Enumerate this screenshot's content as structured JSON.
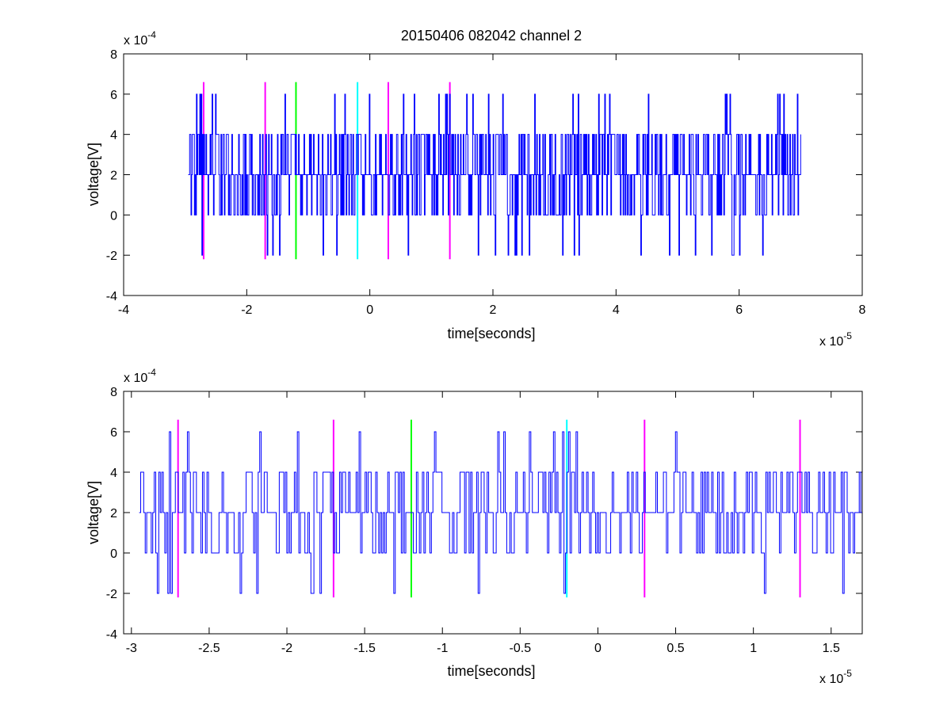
{
  "chart_data": [
    {
      "type": "line",
      "title": "20150406 082042 channel 2",
      "xlabel": "time[seconds]",
      "ylabel": "voltage[V]",
      "x_exponent": "x 10",
      "x_exponent_power": "-5",
      "y_exponent": "x 10",
      "y_exponent_power": "-4",
      "xlim": [
        -4,
        8
      ],
      "ylim": [
        -4,
        8
      ],
      "xticks": [
        "-4",
        "-2",
        "0",
        "2",
        "4",
        "6",
        "8"
      ],
      "yticks": [
        "-4",
        "-2",
        "0",
        "2",
        "4",
        "6",
        "8"
      ],
      "grid": false,
      "series": [
        {
          "color": "#0000ff",
          "x_range": [
            -2.95,
            7.0
          ],
          "levels": [
            -2,
            0,
            2,
            4,
            6
          ],
          "baseline": 2,
          "samples": 900
        }
      ],
      "markers": [
        {
          "x": -2.7,
          "color": "#ff00ff",
          "ymin": -2.2,
          "ymax": 6.6
        },
        {
          "x": -1.7,
          "color": "#ff00ff",
          "ymin": -2.2,
          "ymax": 6.6
        },
        {
          "x": -1.2,
          "color": "#00ff00",
          "ymin": -2.2,
          "ymax": 6.6
        },
        {
          "x": -0.2,
          "color": "#00ffff",
          "ymin": -2.2,
          "ymax": 6.6
        },
        {
          "x": 0.3,
          "color": "#ff00ff",
          "ymin": -2.2,
          "ymax": 6.6
        },
        {
          "x": 1.3,
          "color": "#ff00ff",
          "ymin": -2.2,
          "ymax": 6.6
        }
      ]
    },
    {
      "type": "line",
      "title": "",
      "xlabel": "time[seconds]",
      "ylabel": "voltage[V]",
      "x_exponent": "x 10",
      "x_exponent_power": "-5",
      "y_exponent": "x 10",
      "y_exponent_power": "-4",
      "xlim": [
        -3.05,
        1.7
      ],
      "ylim": [
        -4,
        8
      ],
      "xticks": [
        "-3",
        "-2.5",
        "-2",
        "-1.5",
        "-1",
        "-0.5",
        "0",
        "0.5",
        "1",
        "1.5"
      ],
      "yticks": [
        "-4",
        "-2",
        "0",
        "2",
        "4",
        "6",
        "8"
      ],
      "grid": false,
      "series": [
        {
          "color": "#0000ff",
          "x_range": [
            -2.95,
            1.7
          ],
          "levels": [
            -2,
            0,
            2,
            4,
            6
          ],
          "baseline": 2,
          "samples": 480
        }
      ],
      "markers": [
        {
          "x": -2.7,
          "color": "#ff00ff",
          "ymin": -2.2,
          "ymax": 6.6
        },
        {
          "x": -1.7,
          "color": "#ff00ff",
          "ymin": -2.2,
          "ymax": 6.6
        },
        {
          "x": -1.2,
          "color": "#00ff00",
          "ymin": -2.2,
          "ymax": 6.6
        },
        {
          "x": -0.2,
          "color": "#00ffff",
          "ymin": -2.2,
          "ymax": 6.6
        },
        {
          "x": 0.3,
          "color": "#ff00ff",
          "ymin": -2.2,
          "ymax": 6.6
        },
        {
          "x": 1.3,
          "color": "#ff00ff",
          "ymin": -2.2,
          "ymax": 6.6
        }
      ]
    }
  ]
}
